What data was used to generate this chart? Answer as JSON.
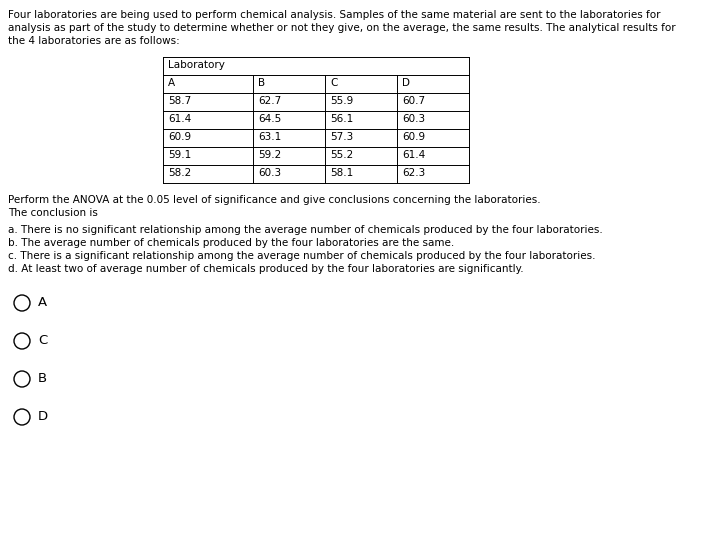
{
  "intro_text_lines": [
    "Four laboratories are being used to perform chemical analysis. Samples of the same material are sent to the laboratories for",
    "analysis as part of the study to determine whether or not they give, on the average, the same results. The analytical results for",
    "the 4 laboratories are as follows:"
  ],
  "table_header_group": "Laboratory",
  "table_cols": [
    "A",
    "B",
    "C",
    "D"
  ],
  "table_data": [
    [
      "58.7",
      "62.7",
      "55.9",
      "60.7"
    ],
    [
      "61.4",
      "64.5",
      "56.1",
      "60.3"
    ],
    [
      "60.9",
      "63.1",
      "57.3",
      "60.9"
    ],
    [
      "59.1",
      "59.2",
      "55.2",
      "61.4"
    ],
    [
      "58.2",
      "60.3",
      "58.1",
      "62.3"
    ]
  ],
  "question_lines": [
    "Perform the ANOVA at the 0.05 level of significance and give conclusions concerning the laboratories.",
    "The conclusion is"
  ],
  "options": [
    "a. There is no significant relationship among the average number of chemicals produced by the four laboratories.",
    "b. The average number of chemicals produced by the four laboratories are the same.",
    "c. There is a significant relationship among the average number of chemicals produced by the four laboratories.",
    "d. At least two of average number of chemicals produced by the four laboratories are significantly."
  ],
  "answer_order": [
    "A",
    "C",
    "B",
    "D"
  ],
  "bg_color": "#ffffff",
  "text_color": "#000000",
  "font_size": 7.5,
  "radio_font_size": 9.5
}
